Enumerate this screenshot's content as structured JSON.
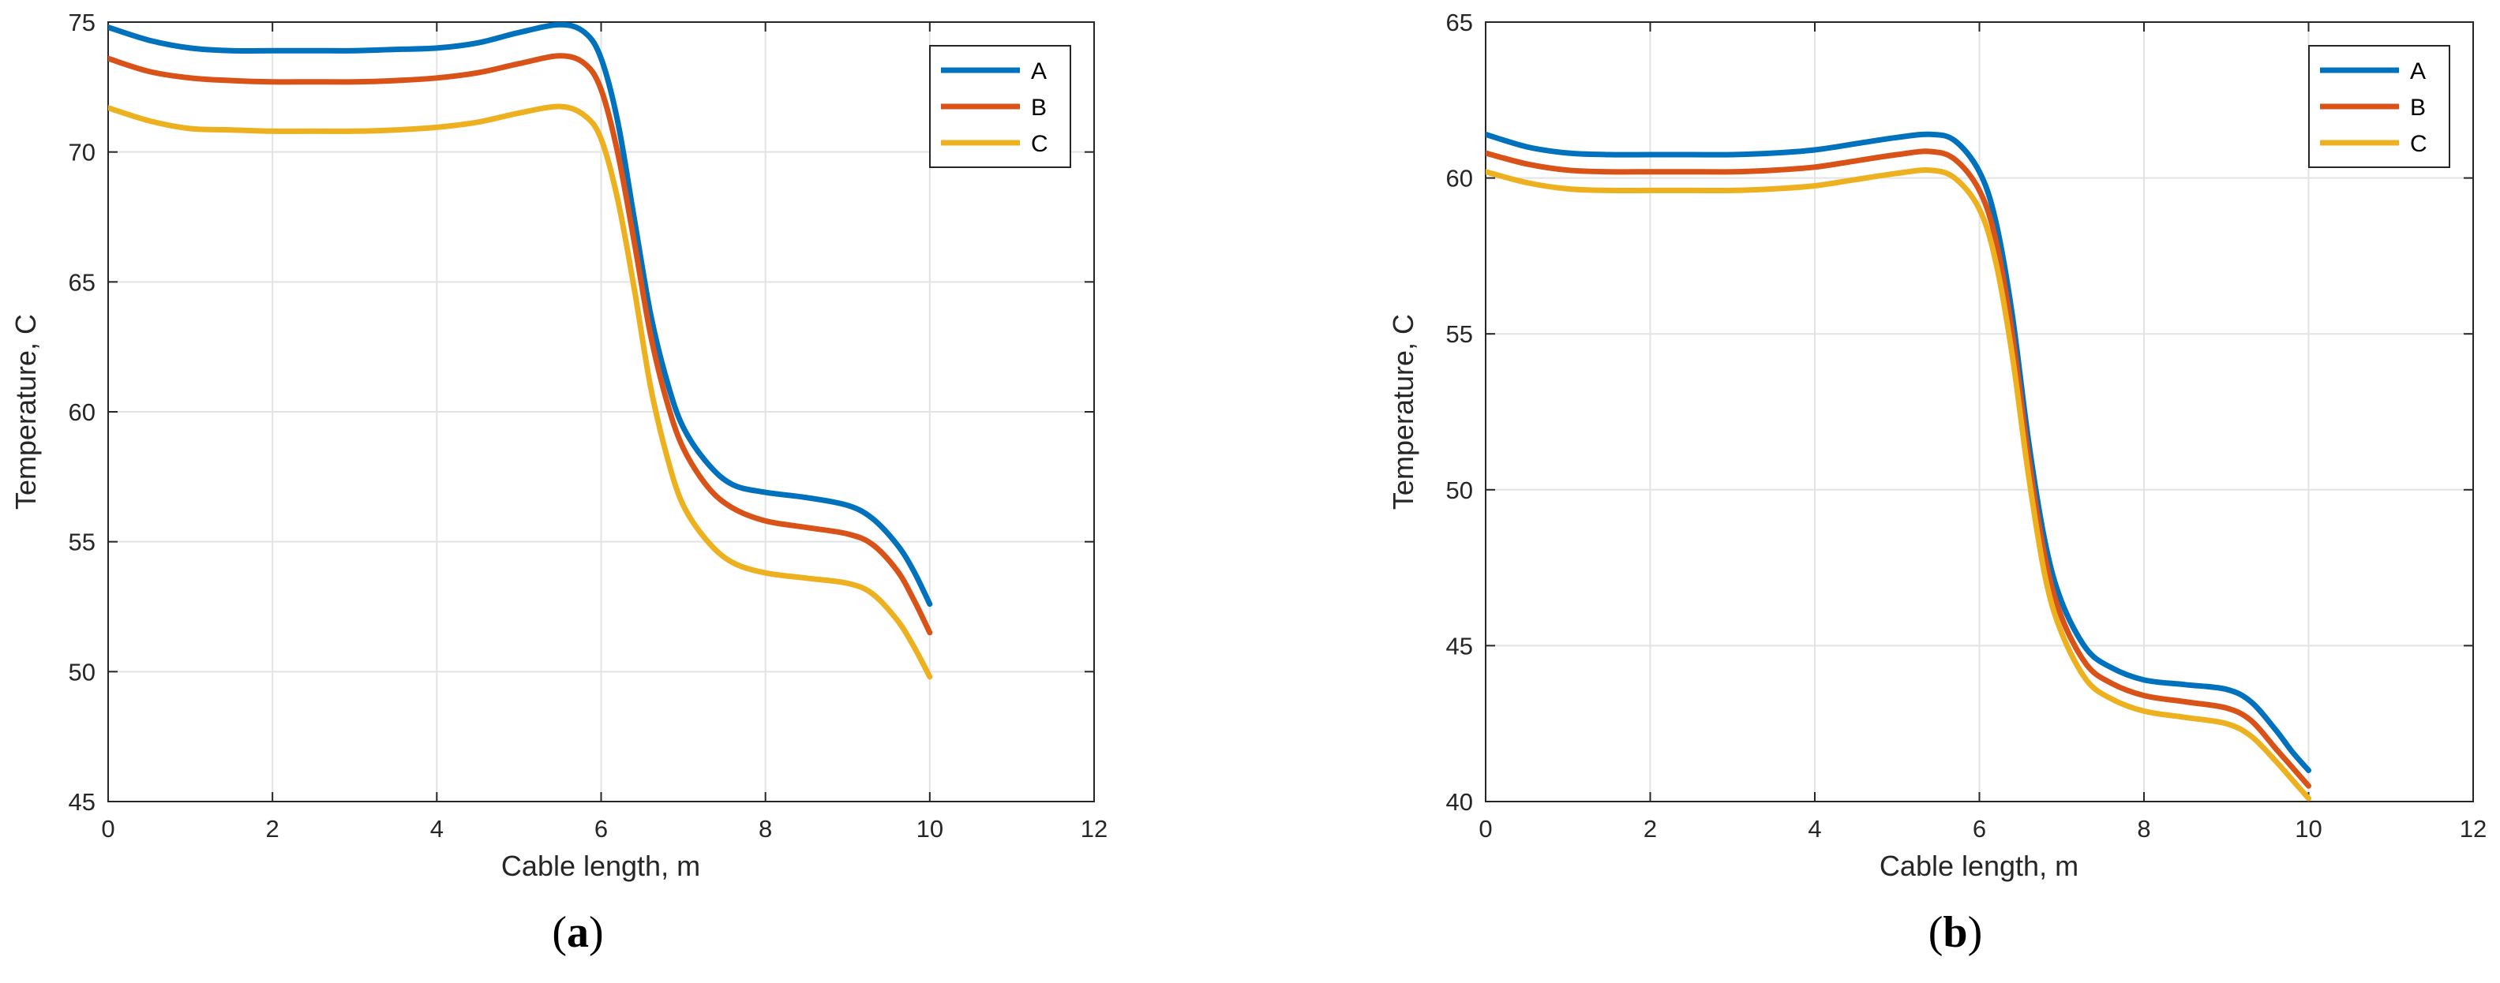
{
  "colors": {
    "A": "#0072BD",
    "B": "#D95319",
    "C": "#EDB120",
    "grid": "#e3e3e3",
    "axis": "#262626"
  },
  "chart_data": [
    {
      "type": "line",
      "panel": "a",
      "caption": {
        "open": "(",
        "letter": "a",
        "close": ")"
      },
      "xlabel": "Cable length, m",
      "ylabel": "Temperature, C",
      "xlim": [
        0,
        12
      ],
      "ylim": [
        45,
        75
      ],
      "xticks": [
        0,
        2,
        4,
        6,
        8,
        10,
        12
      ],
      "yticks": [
        45,
        50,
        55,
        60,
        65,
        70,
        75
      ],
      "grid": true,
      "legend": "top-right",
      "series": [
        {
          "name": "A",
          "x": [
            0,
            0.5,
            1,
            1.5,
            2,
            2.5,
            3,
            3.5,
            4,
            4.5,
            5,
            5.5,
            5.8,
            6,
            6.2,
            6.4,
            6.6,
            6.8,
            7,
            7.3,
            7.6,
            8,
            8.5,
            9,
            9.3,
            9.6,
            9.8,
            10
          ],
          "y": [
            74.8,
            74.3,
            74.0,
            73.9,
            73.9,
            73.9,
            73.9,
            73.95,
            74.0,
            74.2,
            74.6,
            74.9,
            74.6,
            73.6,
            71.2,
            67.5,
            63.8,
            61.2,
            59.4,
            58.0,
            57.2,
            56.9,
            56.7,
            56.4,
            55.9,
            54.9,
            53.9,
            52.6
          ]
        },
        {
          "name": "B",
          "x": [
            0,
            0.5,
            1,
            1.5,
            2,
            2.5,
            3,
            3.5,
            4,
            4.5,
            5,
            5.5,
            5.8,
            6,
            6.2,
            6.4,
            6.6,
            6.8,
            7,
            7.3,
            7.6,
            8,
            8.5,
            9,
            9.3,
            9.6,
            9.8,
            10
          ],
          "y": [
            73.6,
            73.1,
            72.85,
            72.75,
            72.7,
            72.7,
            72.7,
            72.75,
            72.85,
            73.05,
            73.4,
            73.7,
            73.4,
            72.4,
            70.0,
            66.6,
            63.0,
            60.4,
            58.6,
            57.1,
            56.3,
            55.8,
            55.55,
            55.3,
            54.9,
            53.9,
            52.8,
            51.5
          ]
        },
        {
          "name": "C",
          "x": [
            0,
            0.5,
            1,
            1.5,
            2,
            2.5,
            3,
            3.5,
            4,
            4.5,
            5,
            5.5,
            5.8,
            6,
            6.2,
            6.4,
            6.6,
            6.8,
            7,
            7.3,
            7.6,
            8,
            8.5,
            9,
            9.3,
            9.6,
            9.8,
            10
          ],
          "y": [
            71.7,
            71.2,
            70.9,
            70.85,
            70.8,
            70.8,
            70.8,
            70.85,
            70.95,
            71.15,
            71.5,
            71.75,
            71.4,
            70.5,
            68.2,
            64.8,
            61.0,
            58.3,
            56.4,
            55.0,
            54.2,
            53.8,
            53.6,
            53.4,
            53.0,
            52.0,
            51.0,
            49.8
          ]
        }
      ]
    },
    {
      "type": "line",
      "panel": "b",
      "caption": {
        "open": "(",
        "letter": "b",
        "close": ")"
      },
      "xlabel": "Cable length, m",
      "ylabel": "Temperature, C",
      "xlim": [
        0,
        12
      ],
      "ylim": [
        40,
        65
      ],
      "xticks": [
        0,
        2,
        4,
        6,
        8,
        10,
        12
      ],
      "yticks": [
        40,
        45,
        50,
        55,
        60,
        65
      ],
      "grid": true,
      "legend": "top-right",
      "series": [
        {
          "name": "A",
          "x": [
            0,
            0.5,
            1,
            1.5,
            2,
            2.5,
            3,
            3.5,
            4,
            4.5,
            5,
            5.4,
            5.7,
            6,
            6.2,
            6.4,
            6.6,
            6.8,
            7,
            7.3,
            7.6,
            8,
            8.5,
            9,
            9.3,
            9.6,
            9.8,
            10
          ],
          "y": [
            61.4,
            61.0,
            60.8,
            60.75,
            60.75,
            60.75,
            60.75,
            60.8,
            60.9,
            61.1,
            61.3,
            61.4,
            61.2,
            60.2,
            58.6,
            55.6,
            51.5,
            48.3,
            46.4,
            44.9,
            44.3,
            43.9,
            43.75,
            43.6,
            43.2,
            42.3,
            41.6,
            41.0
          ]
        },
        {
          "name": "B",
          "x": [
            0,
            0.5,
            1,
            1.5,
            2,
            2.5,
            3,
            3.5,
            4,
            4.5,
            5,
            5.4,
            5.7,
            6,
            6.2,
            6.4,
            6.6,
            6.8,
            7,
            7.3,
            7.6,
            8,
            8.5,
            9,
            9.3,
            9.6,
            9.8,
            10
          ],
          "y": [
            60.8,
            60.45,
            60.25,
            60.2,
            60.2,
            60.2,
            60.2,
            60.25,
            60.35,
            60.55,
            60.75,
            60.85,
            60.6,
            59.6,
            58.0,
            55.0,
            51.0,
            47.8,
            45.9,
            44.4,
            43.8,
            43.4,
            43.2,
            43.0,
            42.6,
            41.7,
            41.1,
            40.5
          ]
        },
        {
          "name": "C",
          "x": [
            0,
            0.5,
            1,
            1.5,
            2,
            2.5,
            3,
            3.5,
            4,
            4.5,
            5,
            5.4,
            5.7,
            6,
            6.2,
            6.4,
            6.6,
            6.8,
            7,
            7.3,
            7.6,
            8,
            8.5,
            9,
            9.3,
            9.6,
            9.8,
            10
          ],
          "y": [
            60.2,
            59.85,
            59.65,
            59.6,
            59.6,
            59.6,
            59.6,
            59.65,
            59.75,
            59.95,
            60.15,
            60.25,
            60.0,
            59.0,
            57.3,
            54.3,
            50.4,
            47.2,
            45.4,
            43.9,
            43.3,
            42.9,
            42.7,
            42.5,
            42.1,
            41.3,
            40.7,
            40.1
          ]
        }
      ]
    }
  ]
}
